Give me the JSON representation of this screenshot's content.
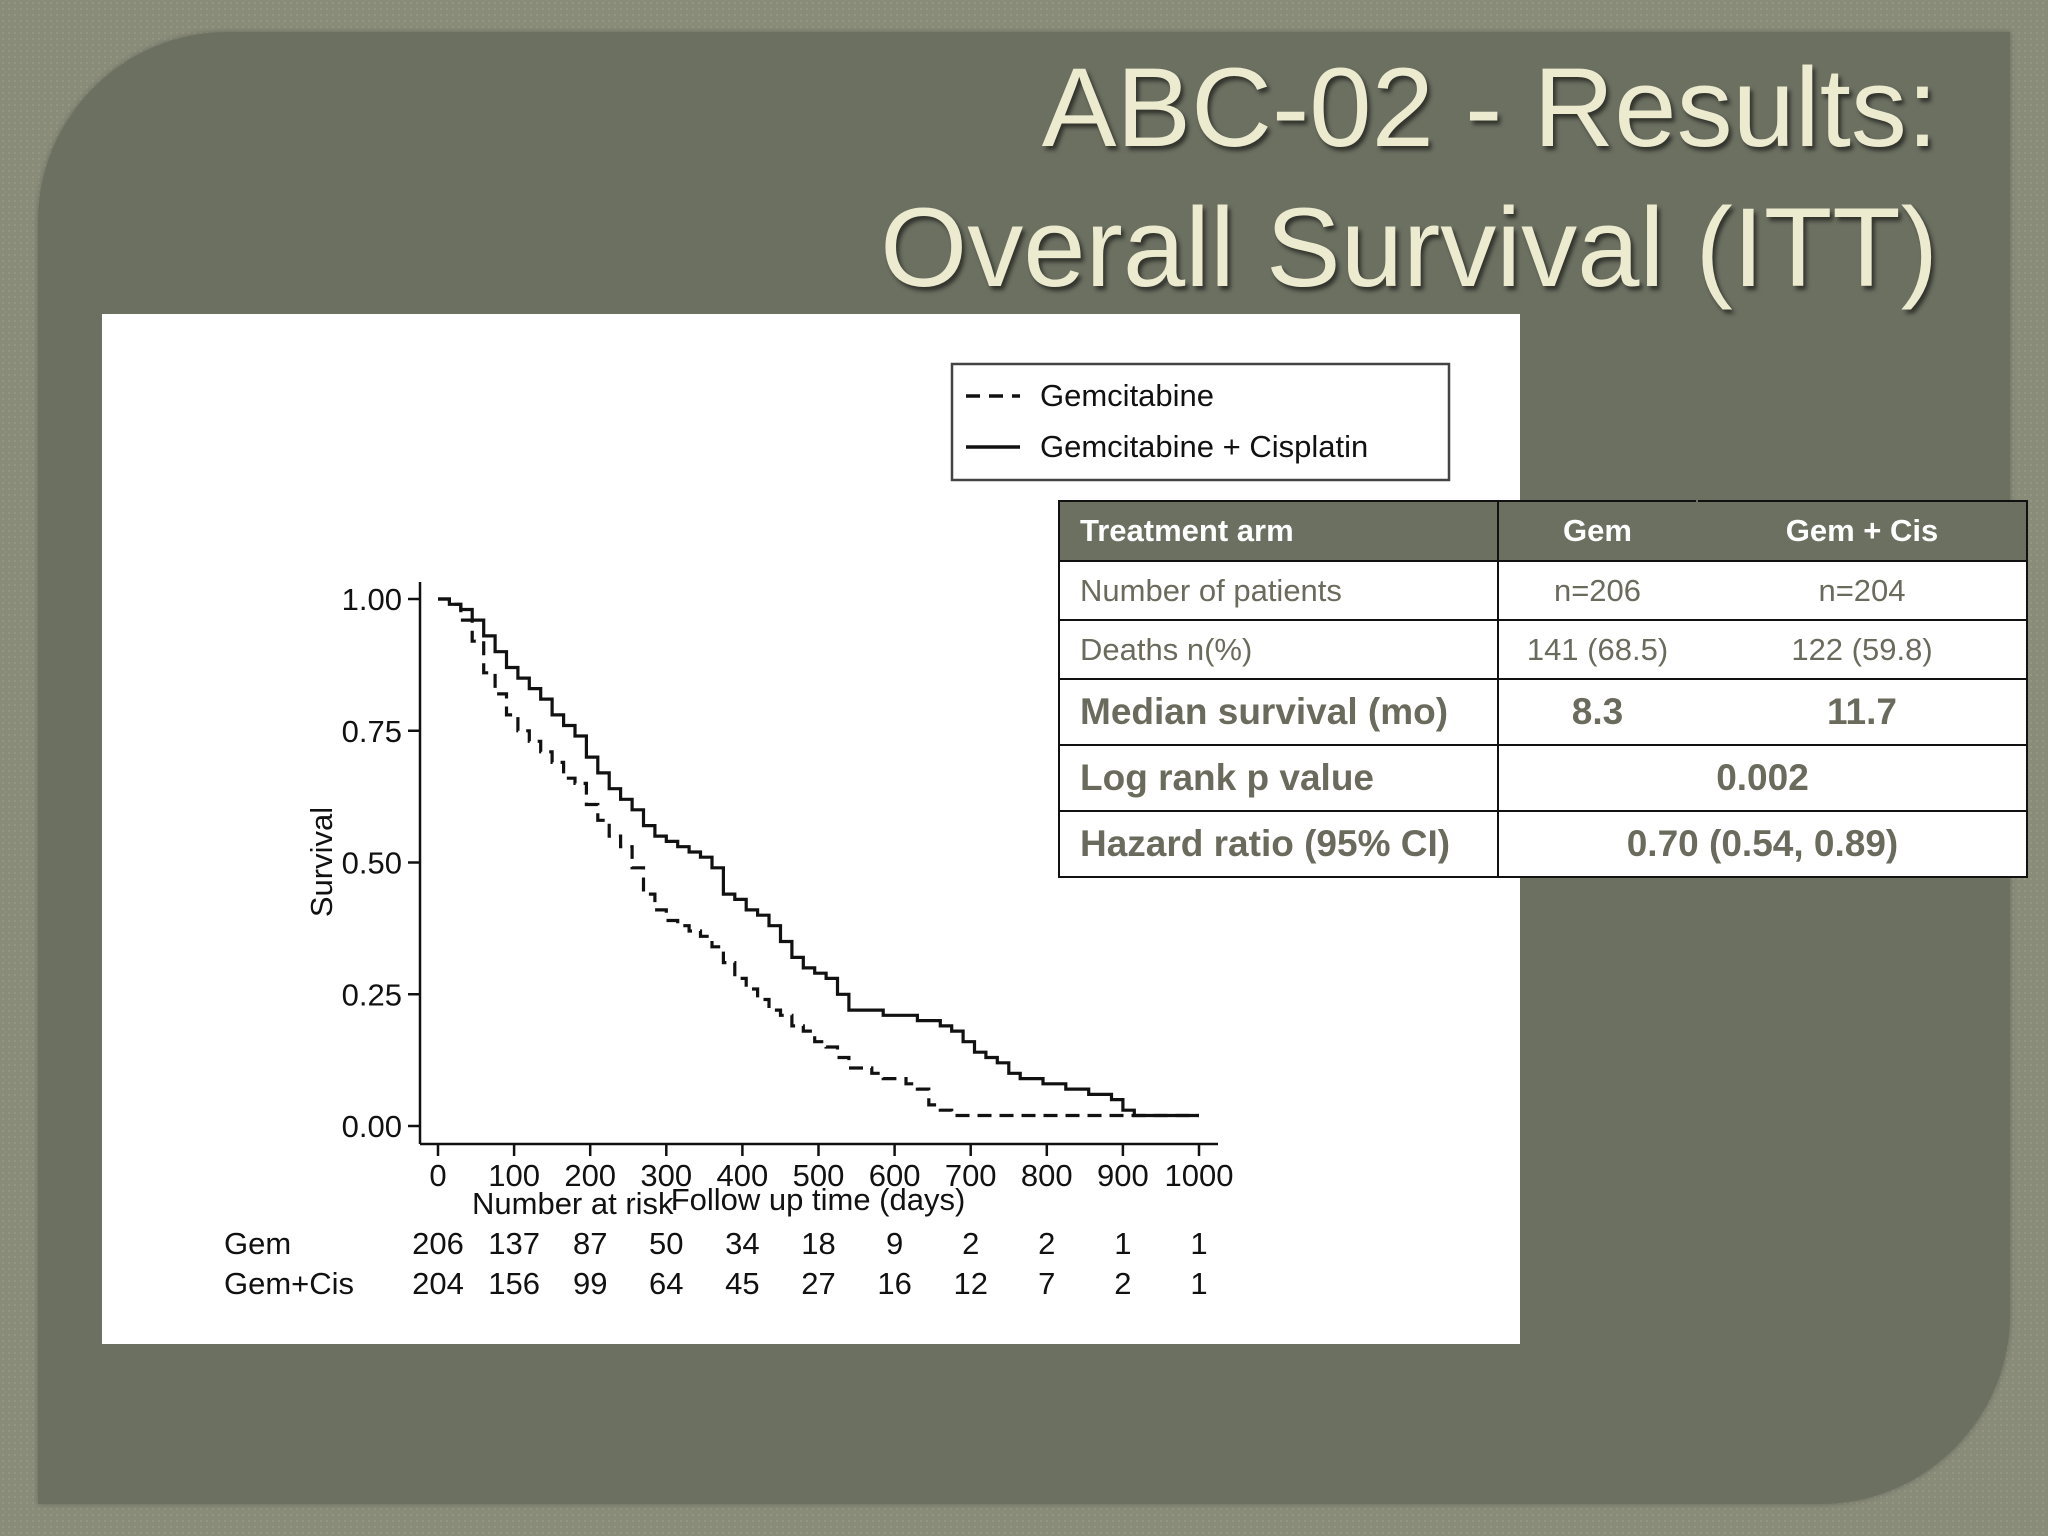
{
  "slide": {
    "title_line1": "ABC-02 - Results:",
    "title_line2": "Overall Survival (ITT)"
  },
  "chart_data": {
    "type": "line",
    "title": "",
    "xlabel": "Follow up time (days)",
    "ylabel": "Survival",
    "xlim": [
      0,
      1000
    ],
    "ylim": [
      0,
      1
    ],
    "x_ticks": [
      "0",
      "100",
      "200",
      "300",
      "400",
      "500",
      "600",
      "700",
      "800",
      "900",
      "1000"
    ],
    "y_ticks": [
      "0.00",
      "0.25",
      "0.50",
      "0.75",
      "1.00"
    ],
    "grid": false,
    "legend_position": "top-right",
    "series": [
      {
        "name": "Gemcitabine",
        "style": "dashed",
        "points": [
          [
            0,
            1.0
          ],
          [
            15,
            0.99
          ],
          [
            30,
            0.96
          ],
          [
            45,
            0.92
          ],
          [
            60,
            0.86
          ],
          [
            75,
            0.82
          ],
          [
            90,
            0.78
          ],
          [
            105,
            0.75
          ],
          [
            120,
            0.73
          ],
          [
            135,
            0.71
          ],
          [
            150,
            0.69
          ],
          [
            165,
            0.66
          ],
          [
            180,
            0.65
          ],
          [
            195,
            0.61
          ],
          [
            210,
            0.58
          ],
          [
            225,
            0.55
          ],
          [
            240,
            0.53
          ],
          [
            255,
            0.49
          ],
          [
            270,
            0.44
          ],
          [
            285,
            0.41
          ],
          [
            300,
            0.39
          ],
          [
            315,
            0.38
          ],
          [
            330,
            0.37
          ],
          [
            345,
            0.36
          ],
          [
            360,
            0.34
          ],
          [
            375,
            0.31
          ],
          [
            390,
            0.28
          ],
          [
            405,
            0.26
          ],
          [
            420,
            0.24
          ],
          [
            435,
            0.22
          ],
          [
            450,
            0.21
          ],
          [
            465,
            0.19
          ],
          [
            480,
            0.18
          ],
          [
            495,
            0.16
          ],
          [
            510,
            0.15
          ],
          [
            525,
            0.13
          ],
          [
            540,
            0.11
          ],
          [
            555,
            0.11
          ],
          [
            570,
            0.1
          ],
          [
            585,
            0.09
          ],
          [
            600,
            0.09
          ],
          [
            615,
            0.08
          ],
          [
            630,
            0.07
          ],
          [
            645,
            0.04
          ],
          [
            660,
            0.03
          ],
          [
            675,
            0.02
          ],
          [
            700,
            0.02
          ],
          [
            800,
            0.02
          ],
          [
            900,
            0.02
          ],
          [
            1000,
            0.02
          ]
        ]
      },
      {
        "name": "Gemcitabine + Cisplatin",
        "style": "solid",
        "points": [
          [
            0,
            1.0
          ],
          [
            15,
            0.99
          ],
          [
            30,
            0.98
          ],
          [
            45,
            0.96
          ],
          [
            60,
            0.93
          ],
          [
            75,
            0.9
          ],
          [
            90,
            0.87
          ],
          [
            105,
            0.85
          ],
          [
            120,
            0.83
          ],
          [
            135,
            0.81
          ],
          [
            150,
            0.78
          ],
          [
            165,
            0.76
          ],
          [
            180,
            0.74
          ],
          [
            195,
            0.7
          ],
          [
            210,
            0.67
          ],
          [
            225,
            0.64
          ],
          [
            240,
            0.62
          ],
          [
            255,
            0.6
          ],
          [
            270,
            0.57
          ],
          [
            285,
            0.55
          ],
          [
            300,
            0.54
          ],
          [
            315,
            0.53
          ],
          [
            330,
            0.52
          ],
          [
            345,
            0.51
          ],
          [
            360,
            0.49
          ],
          [
            375,
            0.44
          ],
          [
            390,
            0.43
          ],
          [
            405,
            0.41
          ],
          [
            420,
            0.4
          ],
          [
            435,
            0.38
          ],
          [
            450,
            0.35
          ],
          [
            465,
            0.32
          ],
          [
            480,
            0.3
          ],
          [
            495,
            0.29
          ],
          [
            510,
            0.28
          ],
          [
            525,
            0.25
          ],
          [
            540,
            0.22
          ],
          [
            555,
            0.22
          ],
          [
            570,
            0.22
          ],
          [
            585,
            0.21
          ],
          [
            600,
            0.21
          ],
          [
            615,
            0.21
          ],
          [
            630,
            0.2
          ],
          [
            645,
            0.2
          ],
          [
            660,
            0.19
          ],
          [
            675,
            0.18
          ],
          [
            690,
            0.16
          ],
          [
            705,
            0.14
          ],
          [
            720,
            0.13
          ],
          [
            735,
            0.12
          ],
          [
            750,
            0.1
          ],
          [
            765,
            0.09
          ],
          [
            780,
            0.09
          ],
          [
            795,
            0.08
          ],
          [
            810,
            0.08
          ],
          [
            825,
            0.07
          ],
          [
            840,
            0.07
          ],
          [
            855,
            0.06
          ],
          [
            870,
            0.06
          ],
          [
            885,
            0.05
          ],
          [
            900,
            0.03
          ],
          [
            915,
            0.02
          ],
          [
            930,
            0.02
          ],
          [
            960,
            0.02
          ],
          [
            1000,
            0.02
          ]
        ]
      }
    ],
    "risk_table": {
      "title": "Number at risk",
      "rows": [
        {
          "label": "Gem",
          "values": [
            "206",
            "137",
            "87",
            "50",
            "34",
            "18",
            "9",
            "2",
            "2",
            "1",
            "1"
          ]
        },
        {
          "label": "Gem+Cis",
          "values": [
            "204",
            "156",
            "99",
            "64",
            "45",
            "27",
            "16",
            "12",
            "7",
            "2",
            "1"
          ]
        }
      ]
    }
  },
  "summary_table": {
    "header": [
      "Treatment arm",
      "Gem",
      "Gem + Cis"
    ],
    "patients": [
      "Number of patients",
      "n=206",
      "n=204"
    ],
    "deaths": [
      "Deaths n(%)",
      "141 (68.5)",
      "122 (59.8)"
    ],
    "median": [
      "Median survival (mo)",
      "8.3",
      "11.7"
    ],
    "logrank": [
      "Log rank p value",
      "0.002"
    ],
    "hazard": [
      "Hazard ratio (95% CI)",
      "0.70 (0.54, 0.89)"
    ]
  },
  "colors": {
    "slide_background": "#8a8c7a",
    "panel": "#6c7061",
    "title_text": "#ecebd0",
    "table_header": "#6c7061",
    "table_text": "#6b6b5d"
  }
}
